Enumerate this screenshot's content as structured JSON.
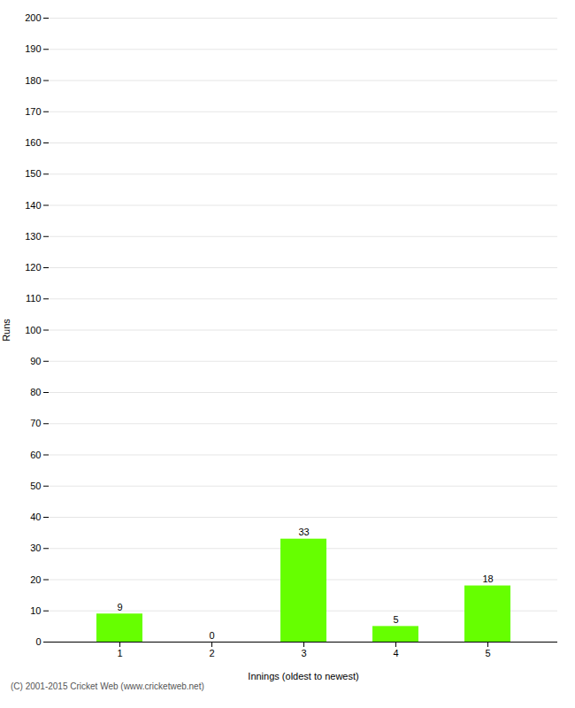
{
  "chart_data": {
    "type": "bar",
    "categories": [
      "1",
      "2",
      "3",
      "4",
      "5"
    ],
    "values": [
      9,
      0,
      33,
      5,
      18
    ],
    "color": "#66ff00",
    "xlabel": "Innings (oldest to newest)",
    "ylabel": "Runs",
    "ylim": [
      0,
      200
    ],
    "yticks": [
      0,
      10,
      20,
      30,
      40,
      50,
      60,
      70,
      80,
      90,
      100,
      110,
      120,
      130,
      140,
      150,
      160,
      170,
      180,
      190,
      200
    ],
    "grid": true,
    "data_labels": true,
    "caption": "(C) 2001-2015 Cricket Web (www.cricketweb.net)"
  }
}
